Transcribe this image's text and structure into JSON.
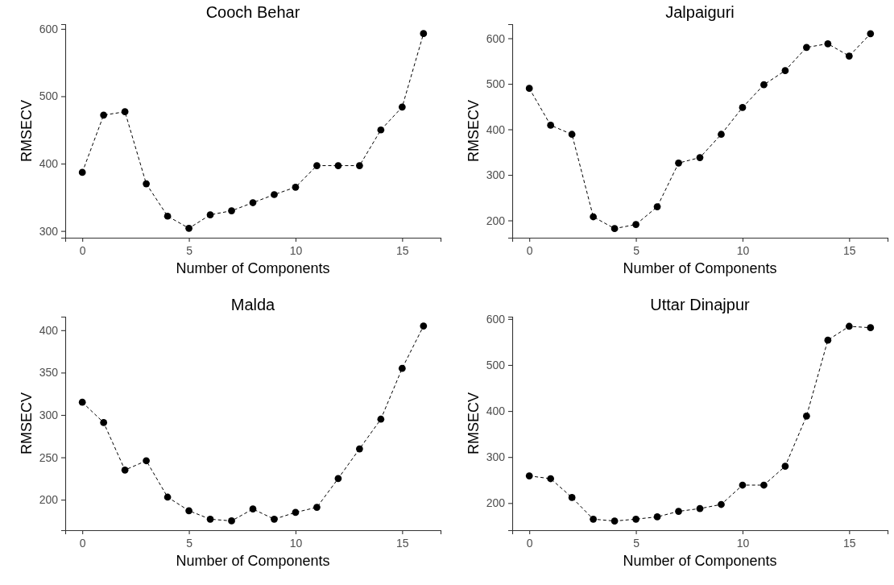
{
  "chart_data": [
    {
      "type": "line",
      "title": "Cooch Behar",
      "xlabel": "Number of Components",
      "ylabel": "RMSECV",
      "marker": "circle",
      "line_style": "dashed",
      "grid": false,
      "x": [
        0,
        1,
        2,
        3,
        4,
        5,
        6,
        7,
        8,
        9,
        10,
        11,
        12,
        13,
        14,
        15,
        16
      ],
      "series": [
        {
          "color": "#000000",
          "values": [
            387,
            472,
            477,
            370,
            322,
            304,
            324,
            330,
            342,
            354,
            365,
            397,
            397,
            397,
            450,
            484,
            593
          ]
        }
      ],
      "xlim": [
        -0.8,
        16.8
      ],
      "xticks": [
        0,
        5,
        10,
        15
      ],
      "ylim": [
        290,
        607
      ],
      "yticks": [
        300,
        400,
        500,
        600
      ]
    },
    {
      "type": "line",
      "title": "Jalpaiguri",
      "xlabel": "Number of Components",
      "ylabel": "RMSECV",
      "marker": "circle",
      "line_style": "dashed",
      "grid": false,
      "x": [
        0,
        1,
        2,
        3,
        4,
        5,
        6,
        7,
        8,
        9,
        10,
        11,
        12,
        13,
        14,
        15,
        16
      ],
      "series": [
        {
          "color": "#000000",
          "values": [
            490,
            409,
            389,
            208,
            182,
            191,
            230,
            326,
            338,
            389,
            448,
            498,
            529,
            580,
            588,
            561,
            610
          ]
        }
      ],
      "xlim": [
        -0.8,
        16.8
      ],
      "xticks": [
        0,
        5,
        10,
        15
      ],
      "ylim": [
        162,
        631
      ],
      "yticks": [
        200,
        300,
        400,
        500,
        600
      ]
    },
    {
      "type": "line",
      "title": "Malda",
      "xlabel": "Number of Components",
      "ylabel": "RMSECV",
      "marker": "circle",
      "line_style": "dashed",
      "grid": false,
      "x": [
        0,
        1,
        2,
        3,
        4,
        5,
        6,
        7,
        8,
        9,
        10,
        11,
        12,
        13,
        14,
        15,
        16
      ],
      "series": [
        {
          "color": "#000000",
          "values": [
            315,
            291,
            235,
            246,
            203,
            187,
            177,
            175,
            189,
            177,
            185,
            191,
            225,
            260,
            295,
            355,
            405
          ]
        }
      ],
      "xlim": [
        -0.8,
        16.8
      ],
      "xticks": [
        0,
        5,
        10,
        15
      ],
      "ylim": [
        164,
        416
      ],
      "yticks": [
        200,
        250,
        300,
        350,
        400
      ]
    },
    {
      "type": "line",
      "title": "Uttar Dinajpur",
      "xlabel": "Number of Components",
      "ylabel": "RMSECV",
      "marker": "circle",
      "line_style": "dashed",
      "grid": false,
      "x": [
        0,
        1,
        2,
        3,
        4,
        5,
        6,
        7,
        8,
        9,
        10,
        11,
        12,
        13,
        14,
        15,
        16
      ],
      "series": [
        {
          "color": "#000000",
          "values": [
            259,
            253,
            212,
            165,
            161,
            165,
            170,
            182,
            188,
            197,
            239,
            239,
            280,
            389,
            554,
            584,
            581
          ]
        }
      ],
      "xlim": [
        -0.8,
        16.8
      ],
      "xticks": [
        0,
        5,
        10,
        15
      ],
      "ylim": [
        141,
        605
      ],
      "yticks": [
        200,
        300,
        400,
        500,
        600
      ]
    }
  ]
}
